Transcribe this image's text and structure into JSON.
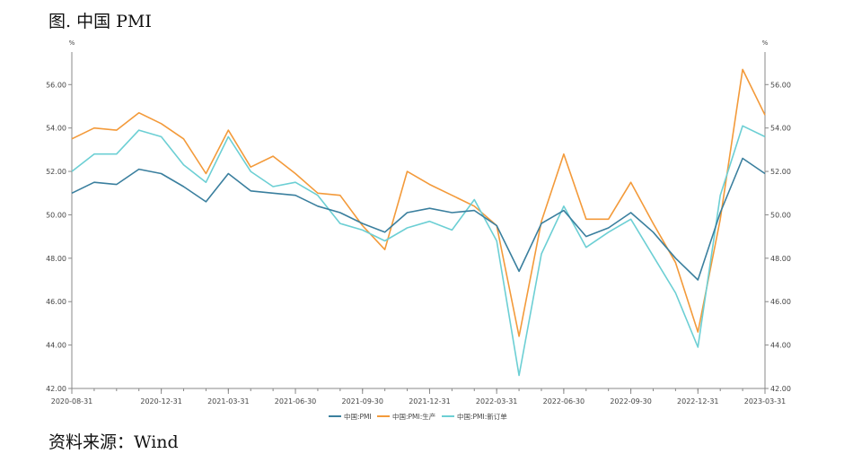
{
  "figure": {
    "title": "图. 中国 PMI",
    "source": "资料来源：Wind"
  },
  "chart_data": {
    "type": "line",
    "unit_left": "%",
    "unit_right": "%",
    "ylim": [
      42,
      57.5
    ],
    "y_ticks": [
      42,
      44,
      46,
      48,
      50,
      52,
      54,
      56
    ],
    "y_tick_labels": [
      "42.00",
      "44.00",
      "46.00",
      "48.00",
      "50.00",
      "52.00",
      "54.00",
      "56.00"
    ],
    "x_tick_labels": [
      "2020-08-31",
      "2020-12-31",
      "2021-03-31",
      "2021-06-30",
      "2021-09-30",
      "2021-12-31",
      "2022-03-31",
      "2022-06-30",
      "2022-09-30",
      "2022-12-31",
      "2023-03-31"
    ],
    "x_tick_index": [
      0,
      4,
      7,
      10,
      13,
      16,
      19,
      22,
      25,
      28,
      31
    ],
    "x": [
      "2020-08-31",
      "2020-09-30",
      "2020-10-31",
      "2020-11-30",
      "2020-12-31",
      "2021-01-31",
      "2021-02-28",
      "2021-03-31",
      "2021-04-30",
      "2021-05-31",
      "2021-06-30",
      "2021-07-31",
      "2021-08-31",
      "2021-09-30",
      "2021-10-31",
      "2021-11-30",
      "2021-12-31",
      "2022-01-31",
      "2022-02-28",
      "2022-03-31",
      "2022-04-30",
      "2022-05-31",
      "2022-06-30",
      "2022-07-31",
      "2022-08-31",
      "2022-09-30",
      "2022-10-31",
      "2022-11-30",
      "2022-12-31",
      "2023-01-31",
      "2023-02-28",
      "2023-03-31"
    ],
    "series": [
      {
        "name": "中国:PMI",
        "color": "#3a7f9e",
        "values": [
          51.0,
          51.5,
          51.4,
          52.1,
          51.9,
          51.3,
          50.6,
          51.9,
          51.1,
          51.0,
          50.9,
          50.4,
          50.1,
          49.6,
          49.2,
          50.1,
          50.3,
          50.1,
          50.2,
          49.5,
          47.4,
          49.6,
          50.2,
          49.0,
          49.4,
          50.1,
          49.2,
          48.0,
          47.0,
          50.1,
          52.6,
          51.9
        ]
      },
      {
        "name": "中国:PMI:生产",
        "color": "#f39a3a",
        "values": [
          53.5,
          54.0,
          53.9,
          54.7,
          54.2,
          53.5,
          51.9,
          53.9,
          52.2,
          52.7,
          51.9,
          51.0,
          50.9,
          49.5,
          48.4,
          52.0,
          51.4,
          50.9,
          50.4,
          49.5,
          44.4,
          49.7,
          52.8,
          49.8,
          49.8,
          51.5,
          49.6,
          47.8,
          44.6,
          49.8,
          56.7,
          54.6
        ]
      },
      {
        "name": "中国:PMI:新订单",
        "color": "#6ccfd4",
        "values": [
          52.0,
          52.8,
          52.8,
          53.9,
          53.6,
          52.3,
          51.5,
          53.6,
          52.0,
          51.3,
          51.5,
          50.9,
          49.6,
          49.3,
          48.8,
          49.4,
          49.7,
          49.3,
          50.7,
          48.8,
          42.6,
          48.2,
          50.4,
          48.5,
          49.2,
          49.8,
          48.1,
          46.4,
          43.9,
          50.9,
          54.1,
          53.6
        ]
      }
    ],
    "legend_position": "bottom-center",
    "grid": false
  }
}
